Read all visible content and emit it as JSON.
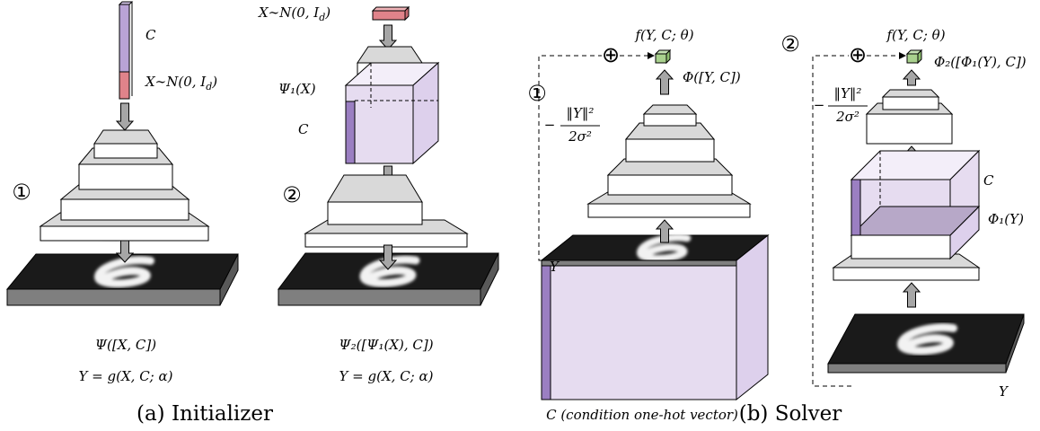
{
  "initializer": {
    "caption": "(a) Initializer",
    "panel1": {
      "marker": "①",
      "c_label": "C",
      "noise_main": "X∼N(0, I",
      "noise_sub": "d",
      "noise_close": ")",
      "network_label": "Ψ([X, C])",
      "equation": "Y = g(X, C; α)"
    },
    "panel2": {
      "marker": "②",
      "noise_main": "X∼N(0, I",
      "noise_sub": "d",
      "noise_close": ")",
      "psi1_label": "Ψ₁(X)",
      "c_label": "C",
      "network_label": "Ψ₂([Ψ₁(X), C])",
      "equation": "Y = g(X, C; α)"
    }
  },
  "solver": {
    "caption": "(b) Solver",
    "panel1": {
      "marker": "①",
      "output": "f(Y, C; θ)",
      "plus": "⊕",
      "network_label": "Φ([Y, C])",
      "neg_sign": "−",
      "numerator": "‖Y‖²",
      "denominator": "2σ²",
      "y_label": "Y",
      "c_label": "C (condition one-hot vector)"
    },
    "panel2": {
      "marker": "②",
      "output": "f(Y, C; θ)",
      "plus": "⊕",
      "network_label": "Φ₂([Φ₁(Y), C])",
      "neg_sign": "−",
      "numerator": "‖Y‖²",
      "denominator": "2σ²",
      "c_label": "C",
      "phi1_label": "Φ₁(Y)",
      "y_label": "Y"
    }
  }
}
